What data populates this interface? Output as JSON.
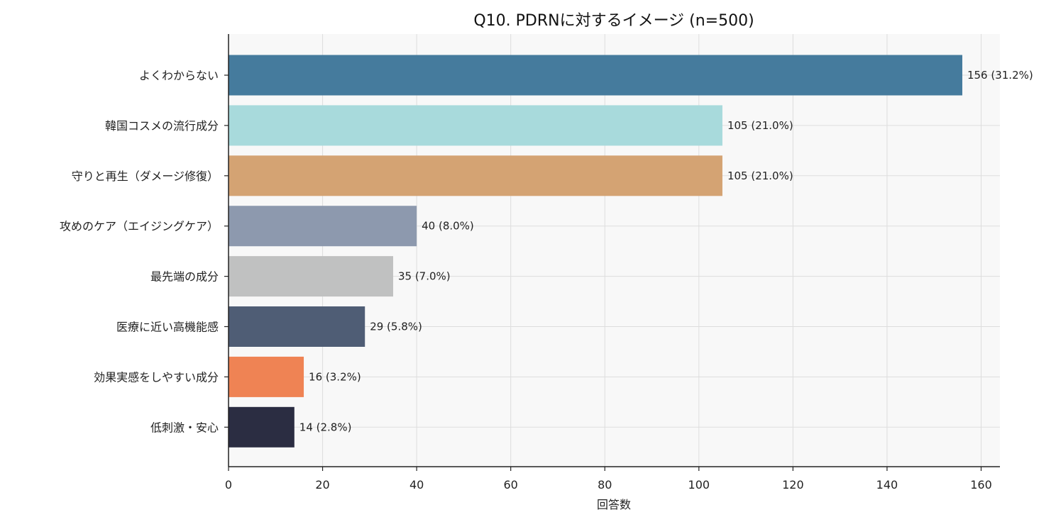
{
  "chart_data": {
    "type": "bar",
    "orientation": "horizontal",
    "title": "Q10. PDRNに対するイメージ (n=500)",
    "xlabel": "回答数",
    "ylabel": "",
    "xlim": [
      0,
      164
    ],
    "xticks": [
      0,
      20,
      40,
      60,
      80,
      100,
      120,
      140,
      160
    ],
    "grid": true,
    "categories": [
      "よくわからない",
      "韓国コスメの流行成分",
      "守りと再生（ダメージ修復）",
      "攻めのケア（エイジングケア）",
      "最先端の成分",
      "医療に近い高機能感",
      "効果実感をしやすい成分",
      "低刺激・安心"
    ],
    "values": [
      156,
      105,
      105,
      40,
      35,
      29,
      16,
      14
    ],
    "labels": [
      "156 (31.2%)",
      "105 (21.0%)",
      "105 (21.0%)",
      "40 (8.0%)",
      "35 (7.0%)",
      "29 (5.8%)",
      "16 (3.2%)",
      "14 (2.8%)"
    ],
    "colors": [
      "#457b9d",
      "#a8dadc",
      "#d4a373",
      "#8d99ae",
      "#c0c1c1",
      "#4f5d75",
      "#ef8354",
      "#2b2d42"
    ]
  },
  "style": {
    "plot_bg": "#f8f8f8",
    "grid_color": "#dddddd",
    "axis_color": "#222222"
  }
}
